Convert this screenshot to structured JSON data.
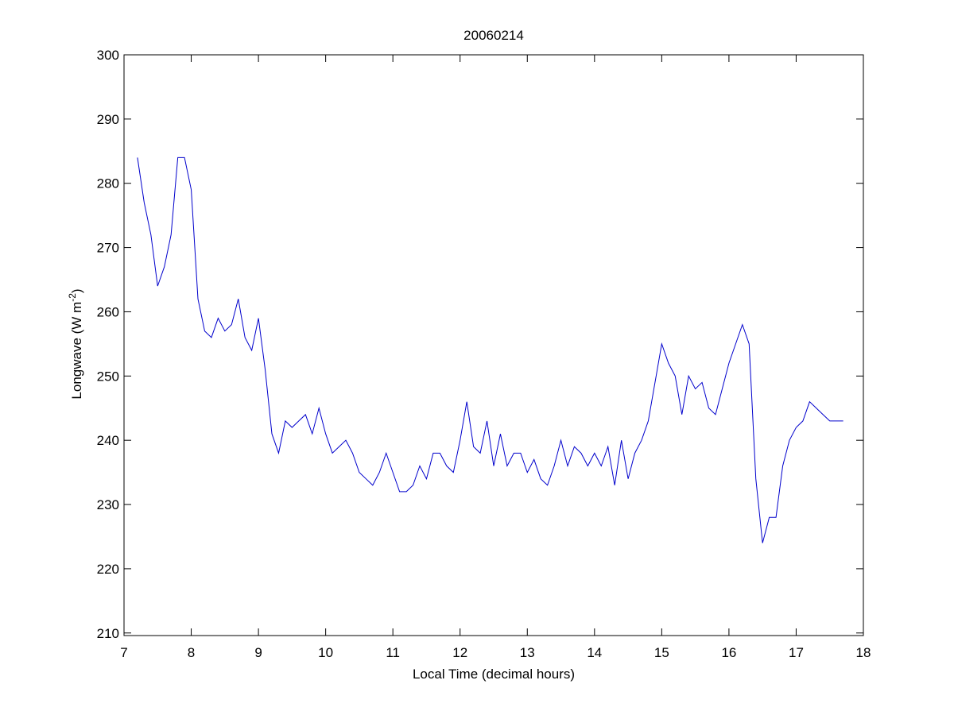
{
  "chart_data": {
    "type": "line",
    "title": "20060214",
    "x_label": "Local Time (decimal hours)",
    "y_label": {
      "text": "Longwave (W m",
      "superscript": "-2",
      "suffix": ")"
    },
    "xlim": [
      7,
      18
    ],
    "xticks": [
      7,
      8,
      9,
      10,
      11,
      12,
      13,
      14,
      15,
      16,
      17,
      18
    ],
    "ylim": [
      209.6,
      300
    ],
    "yticks": [
      210,
      220,
      230,
      240,
      250,
      260,
      270,
      280,
      290,
      300
    ],
    "grid": false,
    "x": [
      7.2,
      7.3,
      7.4,
      7.5,
      7.6,
      7.7,
      7.8,
      7.9,
      8.0,
      8.1,
      8.2,
      8.3,
      8.4,
      8.5,
      8.6,
      8.7,
      8.8,
      8.9,
      9.0,
      9.1,
      9.2,
      9.3,
      9.4,
      9.5,
      9.6,
      9.7,
      9.8,
      9.9,
      10.0,
      10.1,
      10.2,
      10.3,
      10.4,
      10.5,
      10.6,
      10.7,
      10.8,
      10.9,
      11.0,
      11.1,
      11.2,
      11.3,
      11.4,
      11.5,
      11.6,
      11.7,
      11.8,
      11.9,
      12.0,
      12.1,
      12.2,
      12.3,
      12.4,
      12.5,
      12.6,
      12.7,
      12.8,
      12.9,
      13.0,
      13.1,
      13.2,
      13.3,
      13.4,
      13.5,
      13.6,
      13.7,
      13.8,
      13.9,
      14.0,
      14.1,
      14.2,
      14.3,
      14.4,
      14.5,
      14.6,
      14.7,
      14.8,
      14.9,
      15.0,
      15.1,
      15.2,
      15.3,
      15.4,
      15.5,
      15.6,
      15.7,
      15.8,
      15.9,
      16.0,
      16.1,
      16.2,
      16.3,
      16.4,
      16.5,
      16.6,
      16.7,
      16.8,
      16.9,
      17.0,
      17.1,
      17.2,
      17.3,
      17.4,
      17.5,
      17.6,
      17.7
    ],
    "series": [
      {
        "color": "#0000cc",
        "values": [
          284,
          277,
          272,
          264,
          267,
          272,
          284,
          284,
          279,
          262,
          257,
          256,
          259,
          257,
          258,
          262,
          256,
          254,
          259,
          251,
          241,
          238,
          243,
          242,
          243,
          244,
          241,
          245,
          241,
          238,
          239,
          240,
          238,
          235,
          234,
          233,
          235,
          238,
          235,
          232,
          232,
          233,
          236,
          234,
          238,
          238,
          236,
          235,
          240,
          246,
          239,
          238,
          243,
          236,
          241,
          236,
          238,
          238,
          235,
          237,
          234,
          233,
          236,
          240,
          236,
          239,
          238,
          236,
          238,
          236,
          239,
          233,
          240,
          234,
          238,
          240,
          243,
          249,
          255,
          252,
          250,
          244,
          250,
          248,
          249,
          245,
          244,
          248,
          252,
          255,
          258,
          255,
          234,
          224,
          228,
          228,
          236,
          240,
          242,
          243,
          246,
          245,
          244,
          243,
          243,
          243
        ]
      }
    ]
  }
}
